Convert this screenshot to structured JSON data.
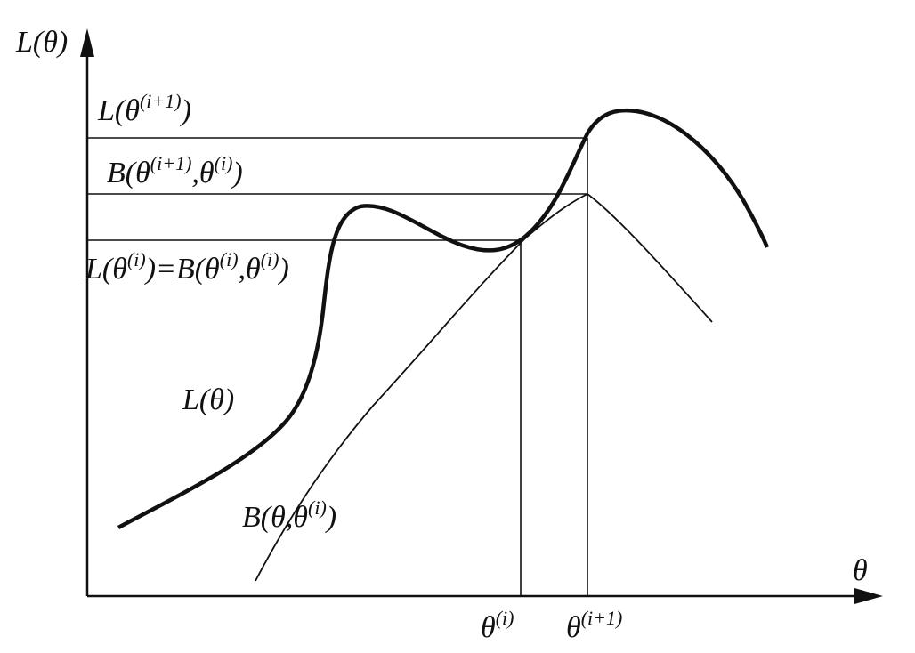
{
  "labels": {
    "y_axis": [
      "L(θ)"
    ],
    "l_next": [
      "L(θ",
      "(i+1)",
      ")"
    ],
    "b_next": [
      "B(θ",
      "(i+1)",
      ",θ",
      "(i)",
      ")"
    ],
    "l_equal_b": [
      "L(θ",
      "(i)",
      ")=B(θ",
      "(i)",
      ",θ",
      "(i)",
      ")"
    ],
    "l_curve": [
      "L(θ)"
    ],
    "b_curve": [
      "B(θ,θ",
      "(i)",
      ")"
    ],
    "x_axis": [
      "θ"
    ],
    "theta_i": [
      "θ",
      "(i)"
    ],
    "theta_next": [
      "θ",
      "(i+1)"
    ]
  }
}
